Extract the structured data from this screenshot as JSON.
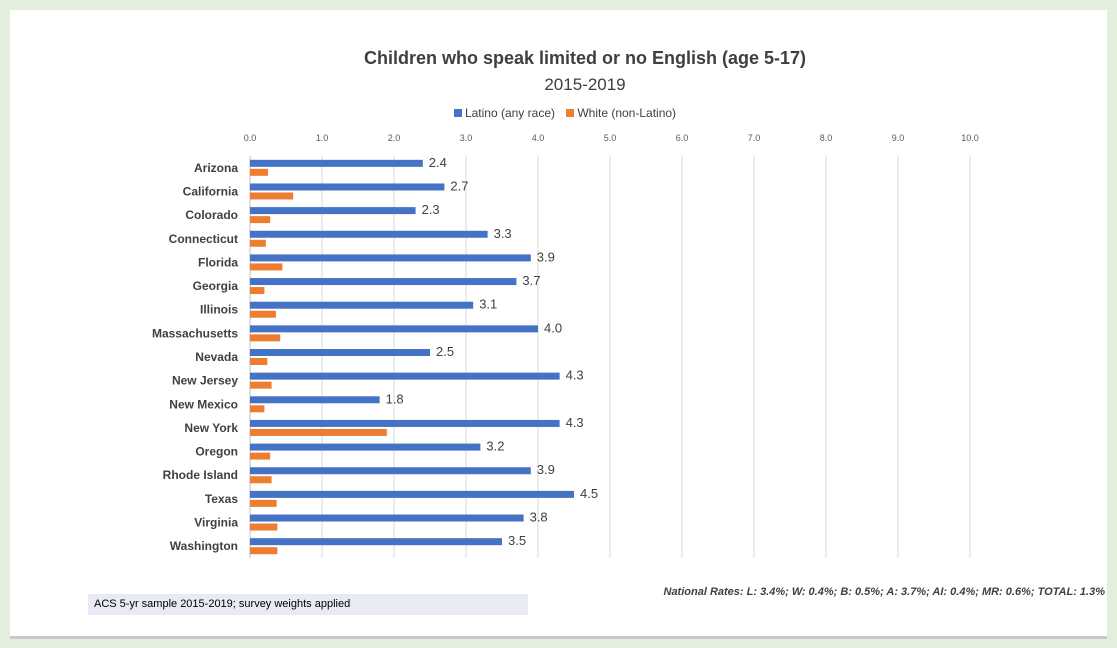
{
  "chart_data": {
    "type": "bar",
    "orientation": "horizontal",
    "title": "Children who speak limited or no English (age 5-17)",
    "subtitle": "2015-2019",
    "xlim": [
      0,
      10
    ],
    "x_ticks": [
      "0.0",
      "1.0",
      "2.0",
      "3.0",
      "4.0",
      "5.0",
      "6.0",
      "7.0",
      "8.0",
      "9.0",
      "10.0"
    ],
    "grid": "vertical",
    "legend_position": "top",
    "categories": [
      "Arizona",
      "California",
      "Colorado",
      "Connecticut",
      "Florida",
      "Georgia",
      "Illinois",
      "Massachusetts",
      "Nevada",
      "New Jersey",
      "New Mexico",
      "New York",
      "Oregon",
      "Rhode Island",
      "Texas",
      "Virginia",
      "Washington"
    ],
    "series": [
      {
        "name": "Latino (any race)",
        "color": "#4472c4",
        "values": [
          2.4,
          2.7,
          2.3,
          3.3,
          3.9,
          3.7,
          3.1,
          4.0,
          2.5,
          4.3,
          1.8,
          4.3,
          3.2,
          3.9,
          4.5,
          3.8,
          3.5
        ],
        "data_labels": [
          "2.4",
          "2.7",
          "2.3",
          "3.3",
          "3.9",
          "3.7",
          "3.1",
          "4.0",
          "2.5",
          "4.3",
          "1.8",
          "4.3",
          "3.2",
          "3.9",
          "4.5",
          "3.8",
          "3.5"
        ]
      },
      {
        "name": "White (non-Latino)",
        "color": "#ed7d31",
        "values": [
          0.25,
          0.6,
          0.28,
          0.22,
          0.45,
          0.2,
          0.36,
          0.42,
          0.24,
          0.3,
          0.2,
          1.9,
          0.28,
          0.3,
          0.37,
          0.38,
          0.38
        ]
      }
    ]
  },
  "footer": {
    "source": "ACS 5-yr sample 2015-2019; survey weights applied",
    "national_rates": "National Rates: L: 3.4%; W: 0.4%; B: 0.5%; A: 3.7%; AI: 0.4%; MR: 0.6%; TOTAL: 1.3%"
  }
}
